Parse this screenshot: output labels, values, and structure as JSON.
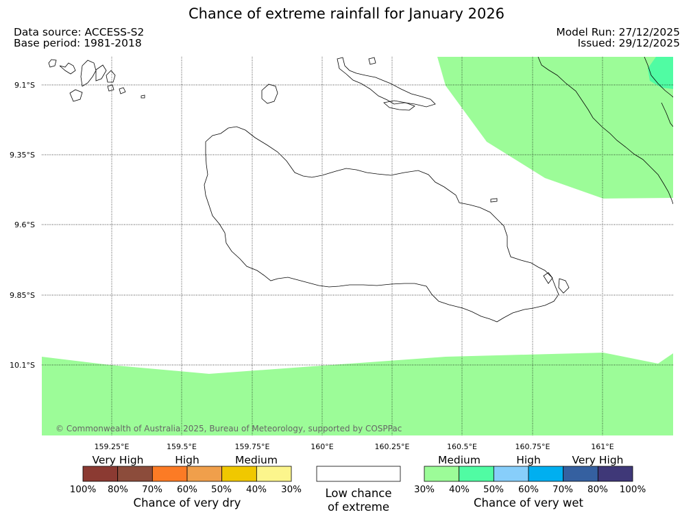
{
  "header": {
    "title": "Chance of extreme rainfall for January 2026",
    "data_source": "Data source: ACCESS-S2",
    "base_period": "Base period: 1981-2018",
    "model_run": "Model Run: 27/12/2025",
    "issued": "Issued: 29/12/2025"
  },
  "map": {
    "lat_labels": [
      "9.1°S",
      "9.35°S",
      "9.6°S",
      "9.85°S",
      "10.1°S"
    ],
    "lon_labels": [
      "159.25°E",
      "159.5°E",
      "159.75°E",
      "160°E",
      "160.25°E",
      "160.5°E",
      "160.75°E",
      "161°E"
    ],
    "copyright": "© Commonwealth of Australia 2025, Bureau of Meteorology, supported by COSPPac",
    "colors": {
      "wet_medium_40": "#9cfc98",
      "wet_medium_50": "#50fca3",
      "coast": "#000000",
      "grid": "#000000"
    }
  },
  "legend": {
    "dry": {
      "groups": [
        "Very High",
        "High",
        "Medium"
      ],
      "colors": [
        "#8b3a32",
        "#8c4c3b",
        "#fc7b25",
        "#f09f4b",
        "#f0c800",
        "#fcf58c"
      ],
      "ticks": [
        "100%",
        "80%",
        "70%",
        "60%",
        "50%",
        "40%",
        "30%"
      ],
      "title": "Chance of very dry"
    },
    "low": {
      "line1": "Low chance",
      "line2": "of extreme",
      "color": "#ffffff"
    },
    "wet": {
      "groups": [
        "Medium",
        "High",
        "Very High"
      ],
      "colors": [
        "#9cfc98",
        "#50fca3",
        "#87cefa",
        "#00aff0",
        "#3560a0",
        "#3f3878"
      ],
      "ticks": [
        "30%",
        "40%",
        "50%",
        "60%",
        "70%",
        "80%",
        "100%"
      ],
      "title": "Chance of very wet"
    }
  }
}
